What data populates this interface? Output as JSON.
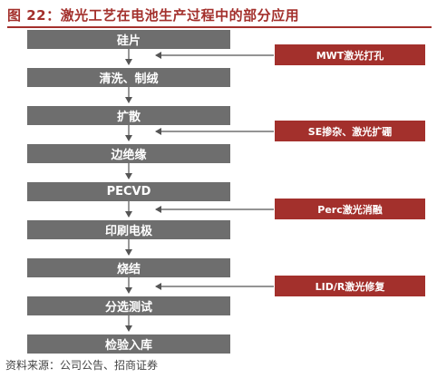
{
  "title": "图 22：激光工艺在电池生产过程中的部分应用",
  "steps": [
    "硅片",
    "清洗、制绒",
    "扩散",
    "边绝缘",
    "PECVD",
    "印刷电极",
    "烧结",
    "分选测试",
    "检验入库"
  ],
  "laser_apps": [
    "MWT激光打孔",
    "SE掺杂、激光扩硼",
    "Perc激光消融",
    "LID/R激光修复"
  ],
  "source": "资料来源：公司公告、招商证券",
  "colors": {
    "accent": "#a3302c",
    "step_fill": "#6e6e6e"
  }
}
